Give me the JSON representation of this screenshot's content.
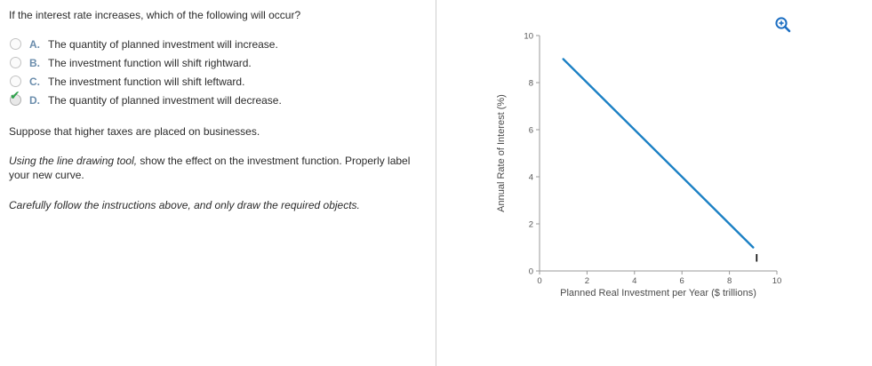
{
  "question": {
    "prompt": "If the interest rate increases, which of the following will occur?",
    "options": [
      {
        "letter": "A.",
        "text": "The quantity of planned investment will increase.",
        "selected": false
      },
      {
        "letter": "B.",
        "text": "The investment function will shift rightward.",
        "selected": false
      },
      {
        "letter": "C.",
        "text": "The investment function will shift leftward.",
        "selected": false
      },
      {
        "letter": "D.",
        "text": "The quantity of planned investment will decrease.",
        "selected": true
      }
    ],
    "followup": "Suppose that higher taxes are placed on businesses.",
    "instruction": {
      "italic_lead": "Using the line drawing tool,",
      "rest": " show the effect on the investment function. Properly label your new curve."
    },
    "note": "Carefully follow the instructions above, and only draw the required objects."
  },
  "chart_data": {
    "type": "line",
    "title": "",
    "xlabel": "Planned Real Investment per Year ($ trillions)",
    "ylabel": "Annual Rate of Interest (%)",
    "xlim": [
      0,
      10
    ],
    "ylim": [
      0,
      10
    ],
    "xticks": [
      0,
      2,
      4,
      6,
      8,
      10
    ],
    "yticks": [
      0,
      2,
      4,
      6,
      8,
      10
    ],
    "grid": false,
    "legend": "none",
    "series": [
      {
        "name": "I",
        "x": [
          1,
          9
        ],
        "y": [
          9,
          1
        ],
        "color": "#1b80c4",
        "label": "I",
        "label_x": 9.15,
        "label_y": 0.4
      }
    ]
  },
  "icons": {
    "zoom": "zoom-in-icon",
    "selected_check": "check-icon"
  },
  "colors": {
    "accent_blue": "#1b80c4",
    "letter_blue": "#6b8dac",
    "check_green": "#2fa34c",
    "axis_gray": "#9a9a9a",
    "text_dark": "#2b2b2b"
  }
}
